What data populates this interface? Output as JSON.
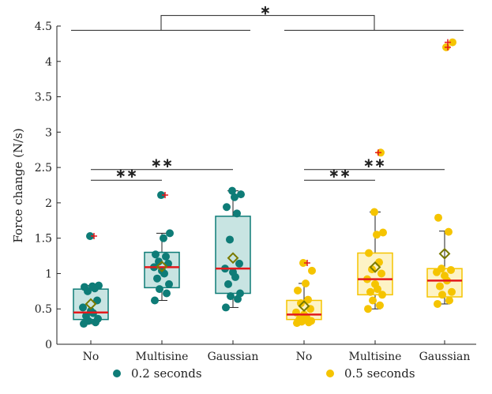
{
  "chart_data": {
    "type": "box",
    "ylabel": "Force change (N/s)",
    "ylim": [
      0,
      4.5
    ],
    "yticks": [
      "0",
      "0.5",
      "1",
      "1.5",
      "2",
      "2.5",
      "3",
      "3.5",
      "4",
      "4.5"
    ],
    "yticks_values": [
      0,
      0.5,
      1,
      1.5,
      2,
      2.5,
      3,
      3.5,
      4,
      4.5
    ],
    "categories": [
      "No",
      "Multisine",
      "Gaussian",
      "No",
      "Multisine",
      "Gaussian"
    ],
    "legend_position": "bottom",
    "series": [
      {
        "name": "0.2 seconds",
        "color": "#0e7c77",
        "box_fill": "#c8e4e2",
        "groups": [
          {
            "category": "No",
            "q1": 0.35,
            "median": 0.45,
            "q3": 0.78,
            "whisker_low": 0.29,
            "whisker_high": 0.83,
            "mean": 0.57,
            "outliers": [
              1.53
            ],
            "points": [
              0.29,
              0.31,
              0.33,
              0.36,
              0.4,
              0.44,
              0.47,
              0.52,
              0.62,
              0.75,
              0.79,
              0.81,
              0.82,
              0.83,
              1.53
            ]
          },
          {
            "category": "Multisine",
            "q1": 0.8,
            "median": 1.09,
            "q3": 1.3,
            "whisker_low": 0.62,
            "whisker_high": 1.57,
            "mean": 1.1,
            "outliers": [
              2.11
            ],
            "points": [
              0.62,
              0.72,
              0.78,
              0.85,
              0.93,
              1.0,
              1.04,
              1.09,
              1.14,
              1.17,
              1.24,
              1.27,
              1.5,
              1.57,
              2.11
            ]
          },
          {
            "category": "Gaussian",
            "q1": 0.72,
            "median": 1.07,
            "q3": 1.81,
            "whisker_low": 0.52,
            "whisker_high": 2.17,
            "mean": 1.22,
            "outliers": [],
            "points": [
              0.52,
              0.64,
              0.68,
              0.72,
              0.85,
              0.95,
              1.02,
              1.07,
              1.14,
              1.48,
              1.85,
              1.94,
              2.08,
              2.12,
              2.17
            ]
          }
        ]
      },
      {
        "name": "0.5 seconds",
        "color": "#f5c400",
        "box_fill": "#fdf3c6",
        "groups": [
          {
            "category": "No",
            "q1": 0.35,
            "median": 0.42,
            "q3": 0.62,
            "whisker_low": 0.3,
            "whisker_high": 0.86,
            "mean": 0.54,
            "outliers": [
              1.15
            ],
            "points": [
              0.3,
              0.31,
              0.32,
              0.33,
              0.35,
              0.38,
              0.42,
              0.45,
              0.5,
              0.58,
              0.63,
              0.76,
              0.86,
              1.04,
              1.15
            ]
          },
          {
            "category": "Multisine",
            "q1": 0.7,
            "median": 0.92,
            "q3": 1.29,
            "whisker_low": 0.5,
            "whisker_high": 1.87,
            "mean": 1.09,
            "outliers": [
              2.71
            ],
            "points": [
              0.5,
              0.55,
              0.62,
              0.7,
              0.74,
              0.78,
              0.85,
              0.92,
              1.0,
              1.06,
              1.16,
              1.29,
              1.55,
              1.58,
              1.87,
              2.71
            ]
          },
          {
            "category": "Gaussian",
            "q1": 0.67,
            "median": 0.9,
            "q3": 1.07,
            "whisker_low": 0.57,
            "whisker_high": 1.6,
            "mean": 1.28,
            "outliers": [
              4.27,
              4.2
            ],
            "points": [
              0.57,
              0.62,
              0.7,
              0.74,
              0.82,
              0.9,
              0.97,
              1.02,
              1.05,
              1.07,
              1.59,
              1.79,
              4.2,
              4.27
            ]
          }
        ]
      }
    ],
    "significance": [
      {
        "from": 0,
        "to": 1,
        "y": 2.32,
        "label": "∗∗"
      },
      {
        "from": 0,
        "to": 2,
        "y": 2.47,
        "label": "∗∗"
      },
      {
        "from": 3,
        "to": 4,
        "y": 2.32,
        "label": "∗∗"
      },
      {
        "from": 3,
        "to": 5,
        "y": 2.47,
        "label": "∗∗"
      },
      {
        "label": "∗"
      }
    ]
  }
}
